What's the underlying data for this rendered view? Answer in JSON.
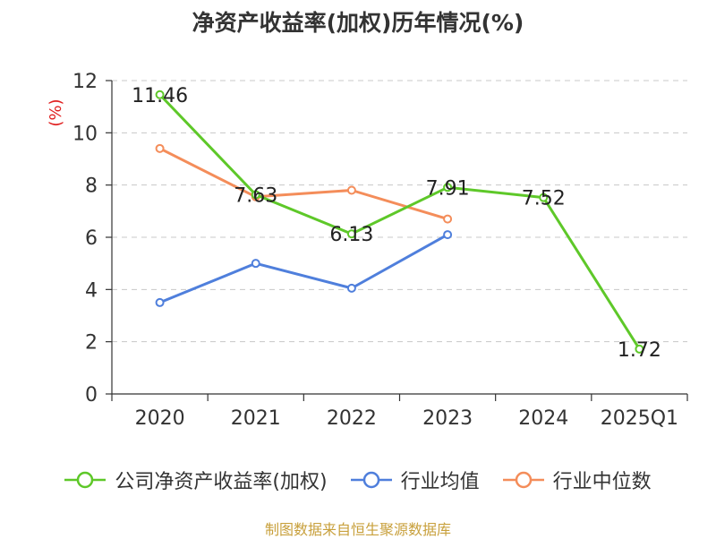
{
  "chart_data": {
    "type": "line",
    "title": "净资产收益率(加权)历年情况(%)",
    "ylabel": "(%)",
    "categories": [
      "2020",
      "2021",
      "2022",
      "2023",
      "2024",
      "2025Q1"
    ],
    "ylim": [
      0,
      12
    ],
    "yticks": [
      0,
      2,
      4,
      6,
      8,
      10,
      12
    ],
    "grid": true,
    "legend_position": "bottom",
    "series": [
      {
        "name": "公司净资产收益率(加权)",
        "color": "#5ec829",
        "values": [
          11.46,
          7.63,
          6.13,
          7.91,
          7.52,
          1.72
        ],
        "labels": [
          "11.46",
          "7.63",
          "6.13",
          "7.91",
          "7.52",
          "1.72"
        ]
      },
      {
        "name": "行业均值",
        "color": "#4f7fdc",
        "values": [
          3.5,
          5.0,
          4.05,
          6.1,
          null,
          null
        ]
      },
      {
        "name": "行业中位数",
        "color": "#f48d5a",
        "values": [
          9.4,
          7.55,
          7.8,
          6.7,
          null,
          null
        ]
      }
    ]
  },
  "footer": {
    "source": "制图数据来自恒生聚源数据库"
  }
}
